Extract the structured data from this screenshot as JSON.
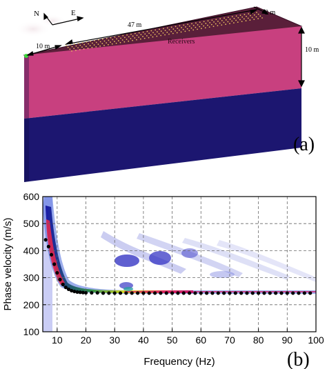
{
  "panel_a": {
    "label": "(a)",
    "compass_north": "N",
    "compass_east": "E",
    "length_label": "47 m",
    "offset_label": "10 m",
    "width_label": "2 m",
    "depth_label": "10 m",
    "source_label": "S",
    "receivers_label": "Receivers",
    "colors": {
      "top_layer": "#c8407f",
      "top_face": "#5a1f3a",
      "half_space": "#1c1670",
      "source": "#3ddc3d"
    }
  },
  "panel_b": {
    "label": "(b)"
  },
  "chart_data": {
    "type": "heatmap",
    "title": "",
    "xlabel": "Frequency (Hz)",
    "ylabel": "Phase velocity (m/s)",
    "xlim": [
      5,
      100
    ],
    "ylim": [
      100,
      600
    ],
    "xticks": [
      "10",
      "20",
      "30",
      "40",
      "50",
      "60",
      "70",
      "80",
      "90",
      "100"
    ],
    "yticks": [
      "100",
      "200",
      "300",
      "400",
      "500",
      "600"
    ],
    "grid": true,
    "dispersion_points": {
      "x": [
        6,
        7,
        8,
        9,
        10,
        11,
        12,
        13,
        14,
        15,
        16,
        17,
        18,
        19,
        20,
        22,
        24,
        26,
        28,
        30,
        32,
        34,
        36,
        38,
        40,
        42,
        44,
        46,
        48,
        50,
        52,
        54,
        56,
        58,
        60,
        62,
        64,
        66,
        68,
        70,
        72,
        74,
        76,
        78,
        80,
        82,
        84,
        86,
        88,
        90,
        92,
        94,
        96,
        98
      ],
      "y": [
        440,
        415,
        385,
        350,
        318,
        293,
        275,
        264,
        257,
        252,
        249,
        247,
        246,
        245,
        244,
        244,
        244,
        243,
        243,
        243,
        243,
        243,
        243,
        243,
        243,
        243,
        243,
        243,
        243,
        243,
        243,
        243,
        243,
        243,
        243,
        243,
        243,
        243,
        243,
        243,
        243,
        243,
        243,
        243,
        243,
        243,
        243,
        243,
        243,
        243,
        243,
        243,
        243,
        243
      ]
    }
  }
}
